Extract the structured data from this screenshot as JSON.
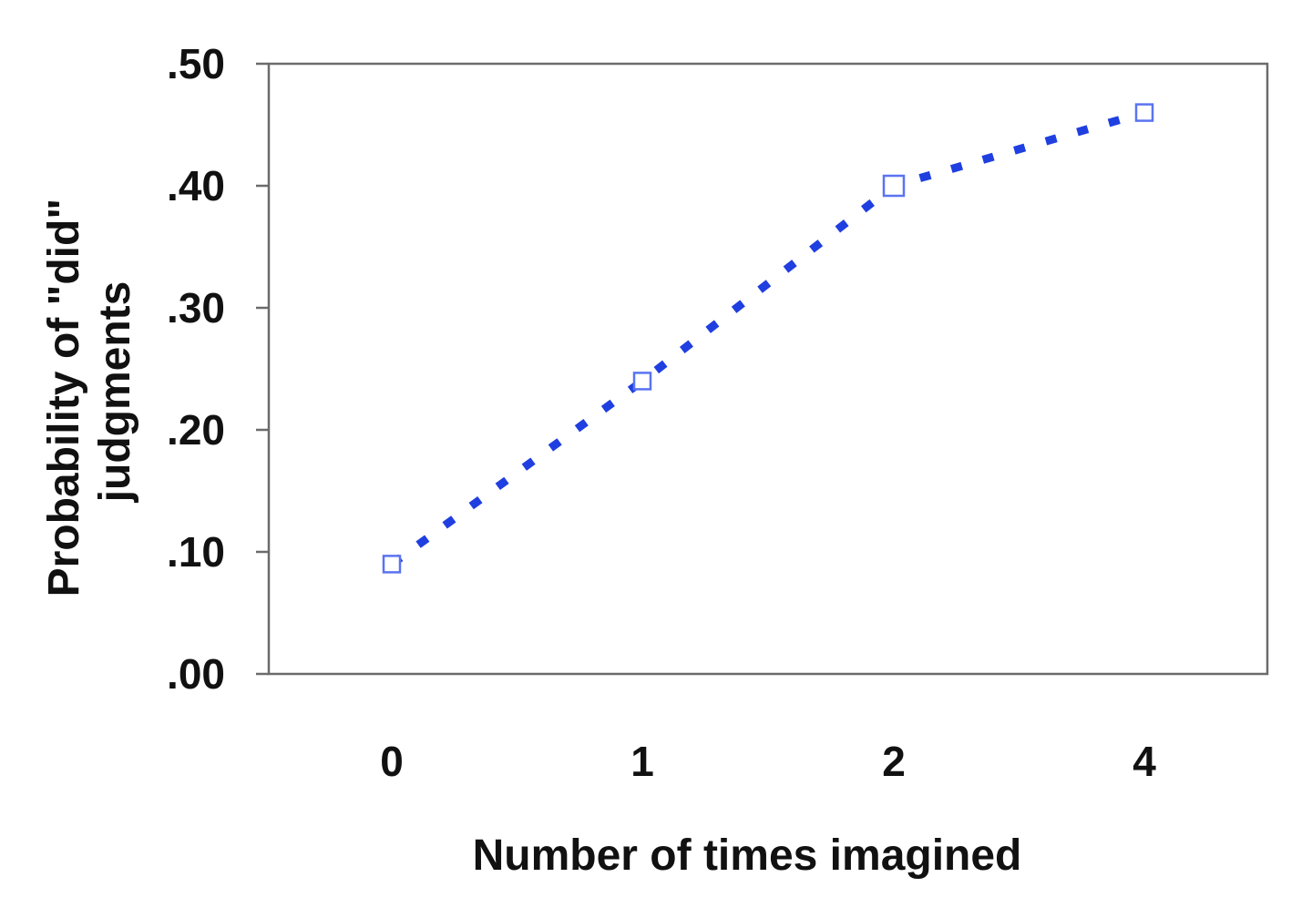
{
  "chart_data": {
    "type": "line",
    "categories": [
      "0",
      "1",
      "2",
      "4"
    ],
    "series": [
      {
        "values": [
          0.09,
          0.24,
          0.4,
          0.46
        ]
      }
    ],
    "xlabel": "Number of times imagined",
    "ylabel": [
      "Probability of \"did\"",
      "judgments"
    ],
    "ylim": [
      0,
      0.5
    ],
    "yticks": [
      ".00",
      ".10",
      ".20",
      ".30",
      ".40",
      ".50"
    ],
    "grid": false,
    "line_style": "dashed",
    "marker": "hollow-square",
    "colors": {
      "line": "#1f3fe0",
      "marker": "#5a74f0",
      "axis": "#6b6b6b",
      "text": "#111111"
    }
  }
}
